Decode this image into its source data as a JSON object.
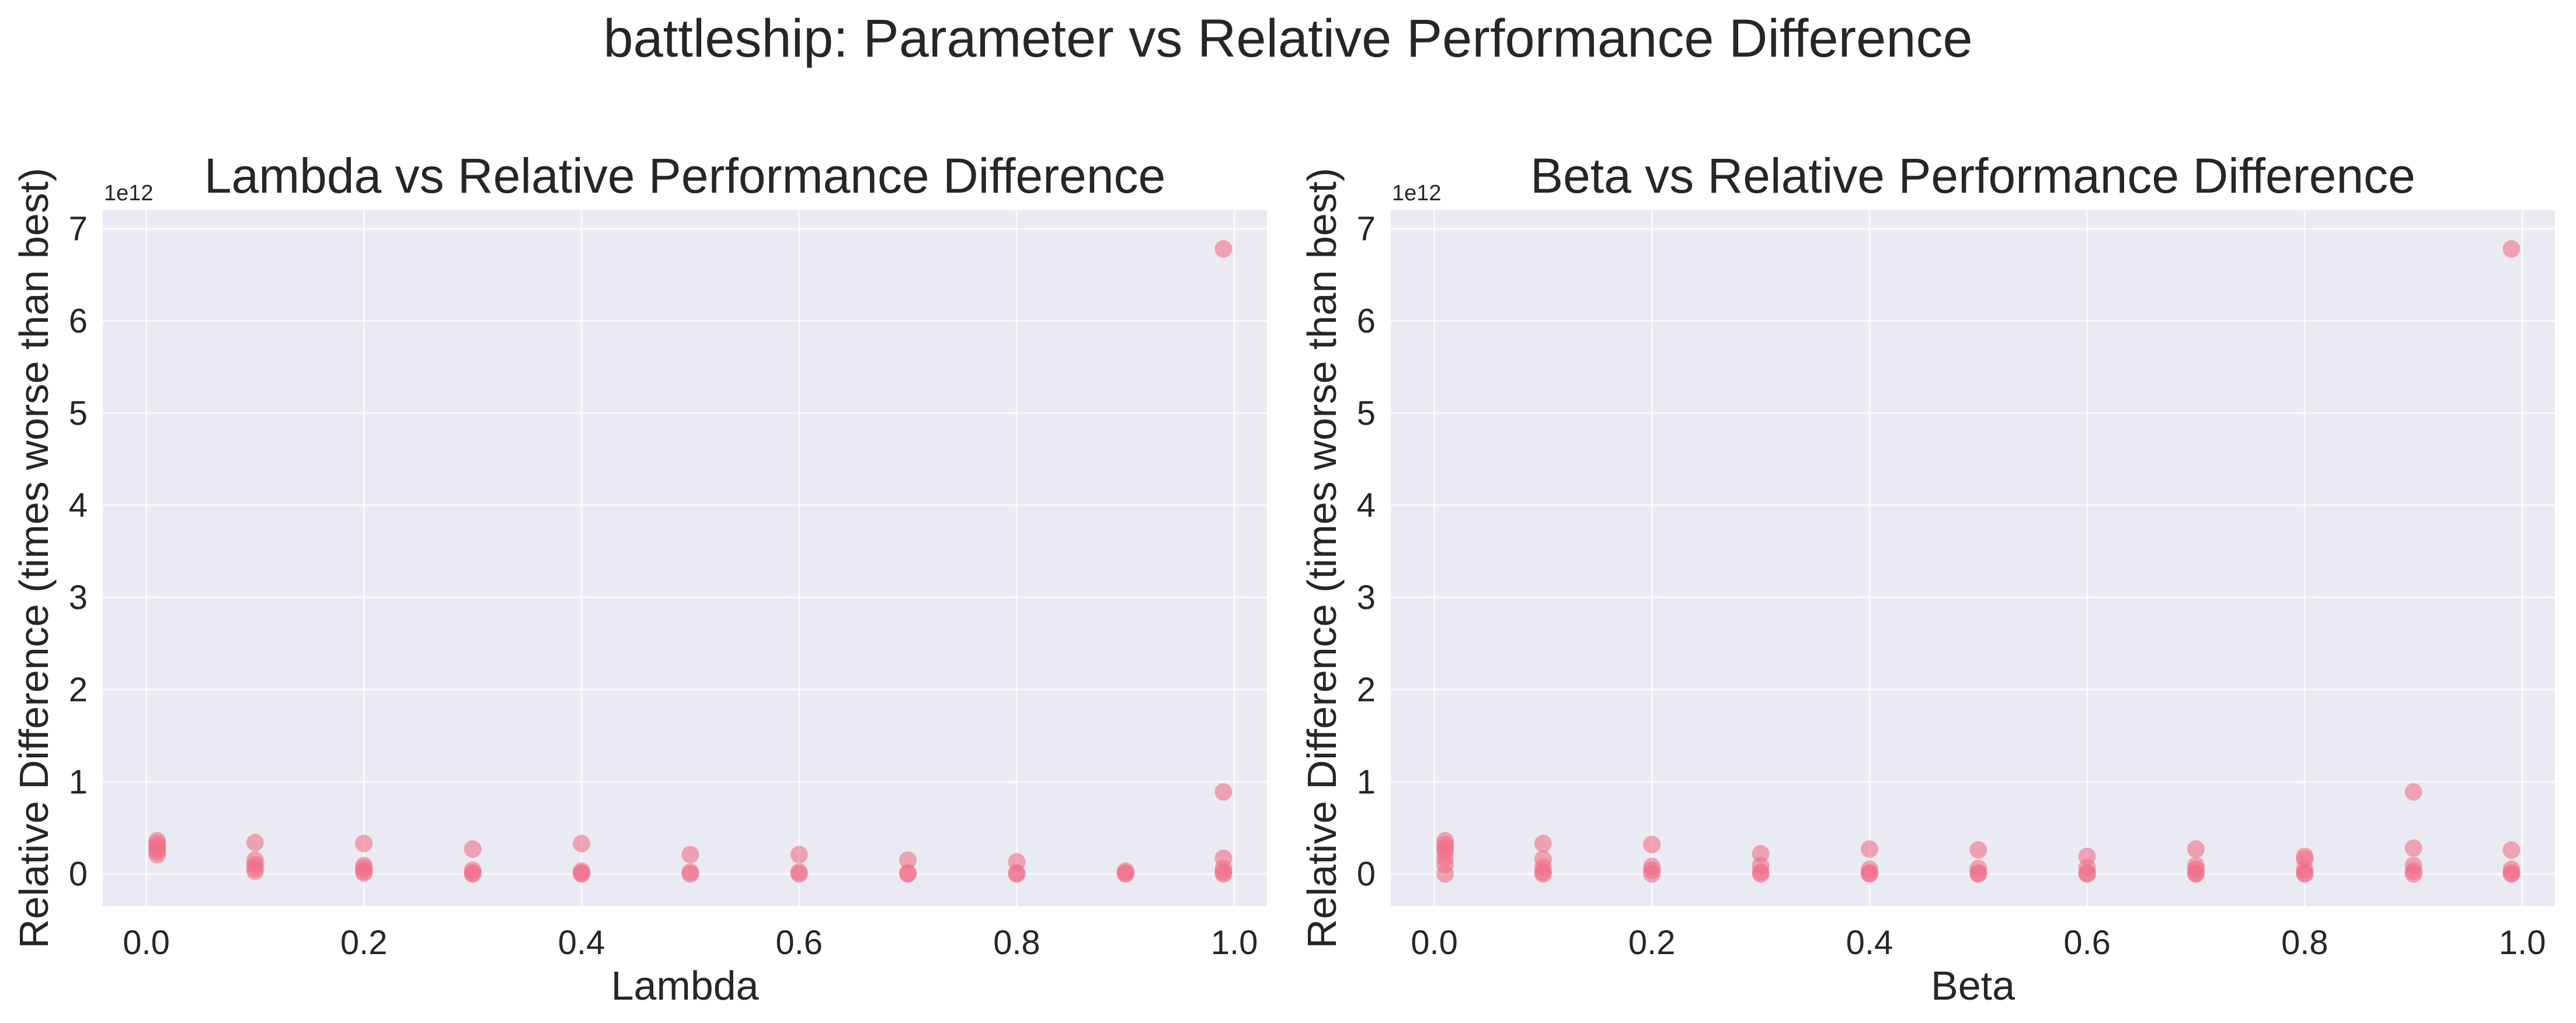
{
  "figure": {
    "title": "battleship: Parameter vs Relative Performance Difference"
  },
  "colors": {
    "background": "#ffffff",
    "plot_background": "#eaeaf2",
    "grid": "#ffffff",
    "marker": "#f07088",
    "text": "#262626"
  },
  "chart_data": [
    {
      "type": "scatter",
      "title": "Lambda vs Relative Performance Difference",
      "xlabel": "Lambda",
      "ylabel": "Relative Difference (times worse than best)",
      "y_offset_label": "1e12",
      "xlim": [
        -0.04,
        1.03
      ],
      "ylim": [
        -0.35,
        7.2
      ],
      "y_scale_factor": 1000000000000.0,
      "xticks": [
        0.0,
        0.2,
        0.4,
        0.6,
        0.8,
        1.0
      ],
      "xtick_labels": [
        "0.0",
        "0.2",
        "0.4",
        "0.6",
        "0.8",
        "1.0"
      ],
      "yticks": [
        0,
        1,
        2,
        3,
        4,
        5,
        6,
        7
      ],
      "ytick_labels": [
        "0",
        "1",
        "2",
        "3",
        "4",
        "5",
        "6",
        "7"
      ],
      "grid": true,
      "marker_alpha": 0.6,
      "points": [
        [
          0.01,
          0.36
        ],
        [
          0.01,
          0.33
        ],
        [
          0.01,
          0.3
        ],
        [
          0.01,
          0.27
        ],
        [
          0.01,
          0.24
        ],
        [
          0.01,
          0.21
        ],
        [
          0.1,
          0.34
        ],
        [
          0.1,
          0.15
        ],
        [
          0.1,
          0.1
        ],
        [
          0.1,
          0.06
        ],
        [
          0.1,
          0.03
        ],
        [
          0.2,
          0.33
        ],
        [
          0.2,
          0.09
        ],
        [
          0.2,
          0.06
        ],
        [
          0.2,
          0.03
        ],
        [
          0.2,
          0.01
        ],
        [
          0.3,
          0.27
        ],
        [
          0.3,
          0.04
        ],
        [
          0.3,
          0.01
        ],
        [
          0.3,
          0.0
        ],
        [
          0.4,
          0.33
        ],
        [
          0.4,
          0.03
        ],
        [
          0.4,
          0.01
        ],
        [
          0.4,
          0.0
        ],
        [
          0.5,
          0.21
        ],
        [
          0.5,
          0.02
        ],
        [
          0.5,
          0.0
        ],
        [
          0.6,
          0.21
        ],
        [
          0.6,
          0.02
        ],
        [
          0.6,
          0.0
        ],
        [
          0.7,
          0.15
        ],
        [
          0.7,
          0.01
        ],
        [
          0.7,
          0.0
        ],
        [
          0.8,
          0.13
        ],
        [
          0.8,
          0.01
        ],
        [
          0.8,
          0.0
        ],
        [
          0.9,
          0.03
        ],
        [
          0.9,
          0.01
        ],
        [
          0.9,
          0.0
        ],
        [
          0.99,
          6.78
        ],
        [
          0.99,
          0.89
        ],
        [
          0.99,
          0.17
        ],
        [
          0.99,
          0.06
        ],
        [
          0.99,
          0.02
        ],
        [
          0.99,
          0.0
        ]
      ]
    },
    {
      "type": "scatter",
      "title": "Beta vs Relative Performance Difference",
      "xlabel": "Beta",
      "ylabel": "Relative Difference (times worse than best)",
      "y_offset_label": "1e12",
      "xlim": [
        -0.04,
        1.03
      ],
      "ylim": [
        -0.35,
        7.2
      ],
      "y_scale_factor": 1000000000000.0,
      "xticks": [
        0.0,
        0.2,
        0.4,
        0.6,
        0.8,
        1.0
      ],
      "xtick_labels": [
        "0.0",
        "0.2",
        "0.4",
        "0.6",
        "0.8",
        "1.0"
      ],
      "yticks": [
        0,
        1,
        2,
        3,
        4,
        5,
        6,
        7
      ],
      "ytick_labels": [
        "0",
        "1",
        "2",
        "3",
        "4",
        "5",
        "6",
        "7"
      ],
      "grid": true,
      "marker_alpha": 0.6,
      "points": [
        [
          0.01,
          0.36
        ],
        [
          0.01,
          0.32
        ],
        [
          0.01,
          0.28
        ],
        [
          0.01,
          0.24
        ],
        [
          0.01,
          0.17
        ],
        [
          0.01,
          0.1
        ],
        [
          0.01,
          0.0
        ],
        [
          0.1,
          0.33
        ],
        [
          0.1,
          0.16
        ],
        [
          0.1,
          0.07
        ],
        [
          0.1,
          0.02
        ],
        [
          0.1,
          0.0
        ],
        [
          0.2,
          0.32
        ],
        [
          0.2,
          0.08
        ],
        [
          0.2,
          0.04
        ],
        [
          0.2,
          0.0
        ],
        [
          0.3,
          0.22
        ],
        [
          0.3,
          0.09
        ],
        [
          0.3,
          0.02
        ],
        [
          0.3,
          0.0
        ],
        [
          0.4,
          0.27
        ],
        [
          0.4,
          0.05
        ],
        [
          0.4,
          0.01
        ],
        [
          0.4,
          0.0
        ],
        [
          0.5,
          0.26
        ],
        [
          0.5,
          0.06
        ],
        [
          0.5,
          0.01
        ],
        [
          0.5,
          0.0
        ],
        [
          0.6,
          0.19
        ],
        [
          0.6,
          0.07
        ],
        [
          0.6,
          0.01
        ],
        [
          0.6,
          0.0
        ],
        [
          0.7,
          0.27
        ],
        [
          0.7,
          0.09
        ],
        [
          0.7,
          0.05
        ],
        [
          0.7,
          0.01
        ],
        [
          0.7,
          0.0
        ],
        [
          0.8,
          0.19
        ],
        [
          0.8,
          0.16
        ],
        [
          0.8,
          0.05
        ],
        [
          0.8,
          0.01
        ],
        [
          0.8,
          0.0
        ],
        [
          0.9,
          0.89
        ],
        [
          0.9,
          0.28
        ],
        [
          0.9,
          0.09
        ],
        [
          0.9,
          0.03
        ],
        [
          0.9,
          0.0
        ],
        [
          0.99,
          6.78
        ],
        [
          0.99,
          0.26
        ],
        [
          0.99,
          0.05
        ],
        [
          0.99,
          0.01
        ],
        [
          0.99,
          0.0
        ]
      ]
    }
  ]
}
